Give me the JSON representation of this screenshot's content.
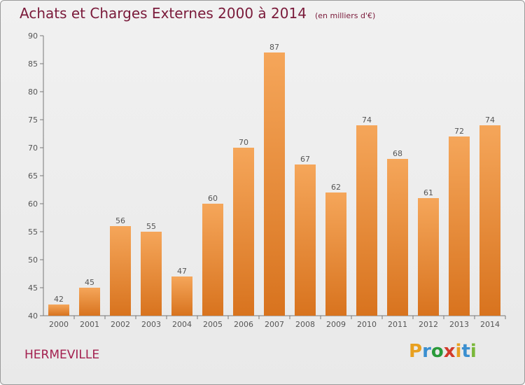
{
  "title": "Achats et Charges Externes 2000 à 2014",
  "subtitle": "(en milliers d'€)",
  "commune": "HERMEVILLE",
  "logo": {
    "text": "Proxiti",
    "letters": [
      "P",
      "r",
      "o",
      "x",
      "i",
      "t",
      "i"
    ],
    "colors": [
      "#e8a020",
      "#3a8fd0",
      "#2a9a3a",
      "#d23a2a",
      "#e8a020",
      "#3a8fd0",
      "#7ab83a"
    ]
  },
  "colors": {
    "title": "#7a1a3a",
    "bar_top": "#f5a65a",
    "bar_bottom": "#d8731e",
    "axis_text": "#555555"
  },
  "chart_data": {
    "type": "bar",
    "title": "Achats et Charges Externes 2000 à 2014",
    "subtitle": "(en milliers d'€)",
    "xlabel": "",
    "ylabel": "",
    "categories": [
      "2000",
      "2001",
      "2002",
      "2003",
      "2004",
      "2005",
      "2006",
      "2007",
      "2008",
      "2009",
      "2010",
      "2011",
      "2012",
      "2013",
      "2014"
    ],
    "values": [
      42,
      45,
      56,
      55,
      47,
      60,
      70,
      87,
      67,
      62,
      74,
      68,
      61,
      72,
      74
    ],
    "ylim": [
      40,
      90
    ],
    "yticks": [
      40,
      45,
      50,
      55,
      60,
      65,
      70,
      75,
      80,
      85,
      90
    ],
    "grid": false,
    "legend": "none"
  }
}
